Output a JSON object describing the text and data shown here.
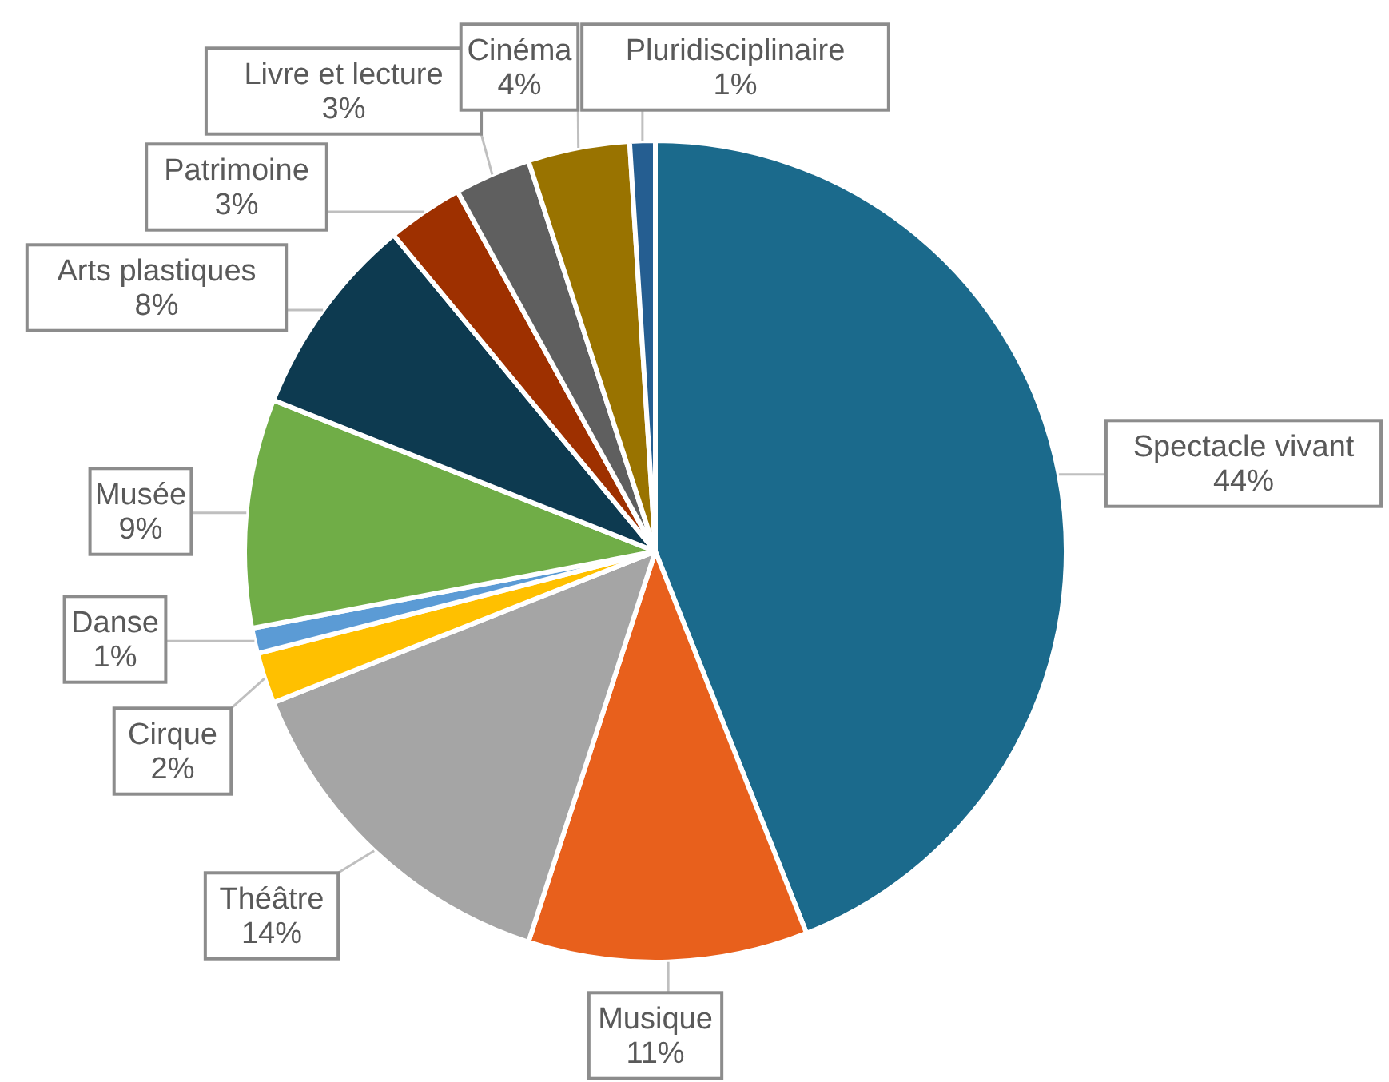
{
  "chart_data": {
    "type": "pie",
    "categories": [
      "Spectacle vivant",
      "Musique",
      "Théâtre",
      "Cirque",
      "Danse",
      "Musée",
      "Arts plastiques",
      "Patrimoine",
      "Livre et lecture",
      "Cinéma",
      "Pluridisciplinaire"
    ],
    "values": [
      44,
      11,
      14,
      2,
      1,
      9,
      8,
      3,
      3,
      4,
      1
    ],
    "value_labels": [
      "44%",
      "11%",
      "14%",
      "2%",
      "1%",
      "9%",
      "8%",
      "3%",
      "3%",
      "4%",
      "1%"
    ],
    "colors": [
      "#1b6a8c",
      "#e8601c",
      "#a5a5a5",
      "#ffc000",
      "#5b9bd5",
      "#70ad47",
      "#0d3a50",
      "#9e3000",
      "#5f5f5f",
      "#997300",
      "#255e91"
    ]
  }
}
